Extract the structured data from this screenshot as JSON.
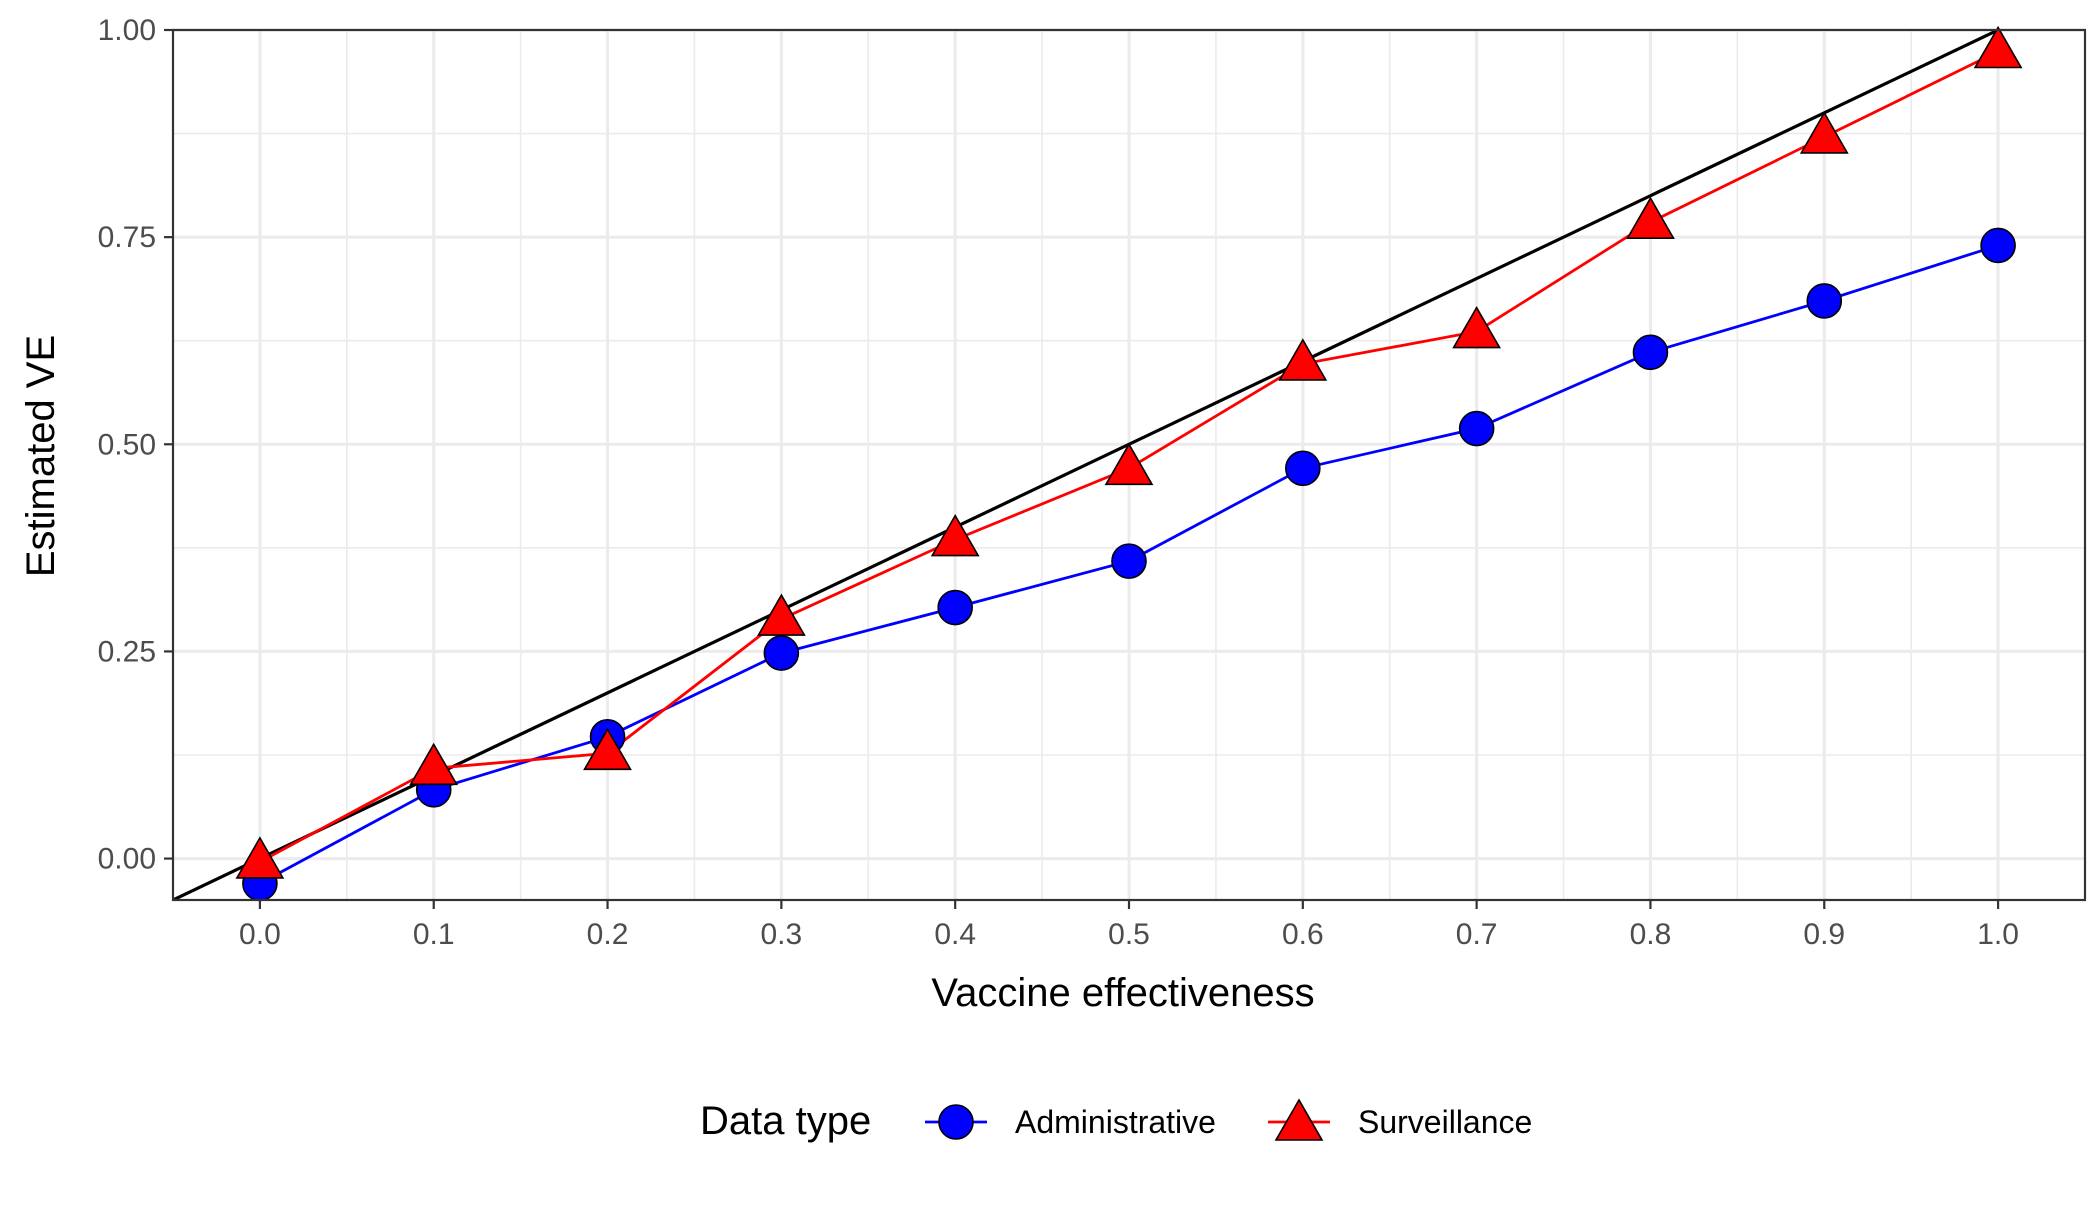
{
  "chart_data": {
    "type": "line",
    "title": "",
    "xlabel": "Vaccine effectiveness",
    "ylabel": "Estimated VE",
    "xlim": [
      -0.05,
      1.05
    ],
    "ylim": [
      -0.05,
      1.0
    ],
    "x_ticks": [
      0.0,
      0.1,
      0.2,
      0.3,
      0.4,
      0.5,
      0.6,
      0.7,
      0.8,
      0.9,
      1.0
    ],
    "x_tick_labels": [
      "0.0",
      "0.1",
      "0.2",
      "0.3",
      "0.4",
      "0.5",
      "0.6",
      "0.7",
      "0.8",
      "0.9",
      "1.0"
    ],
    "y_ticks": [
      0.0,
      0.25,
      0.5,
      0.75,
      1.0
    ],
    "y_tick_labels": [
      "0.00",
      "0.25",
      "0.50",
      "0.75",
      "1.00"
    ],
    "grid": true,
    "x": [
      0.0,
      0.1,
      0.2,
      0.3,
      0.4,
      0.5,
      0.6,
      0.7,
      0.8,
      0.9,
      1.0
    ],
    "series": [
      {
        "name": "Administrative",
        "marker": "circle",
        "line_color": "#0000ff",
        "fill_color": "#0000ff",
        "values": [
          -0.03,
          0.083,
          0.147,
          0.248,
          0.303,
          0.359,
          0.471,
          0.519,
          0.611,
          0.673,
          0.74
        ]
      },
      {
        "name": "Surveillance",
        "marker": "triangle",
        "line_color": "#ff0000",
        "fill_color": "#ff0000",
        "values": [
          -0.004,
          0.109,
          0.127,
          0.289,
          0.385,
          0.471,
          0.597,
          0.636,
          0.768,
          0.871,
          0.974
        ]
      }
    ],
    "reference_line": {
      "type": "identity",
      "intercept": 0,
      "slope": 1,
      "color": "#000000"
    },
    "legend": {
      "title": "Data type",
      "position": "bottom"
    }
  }
}
